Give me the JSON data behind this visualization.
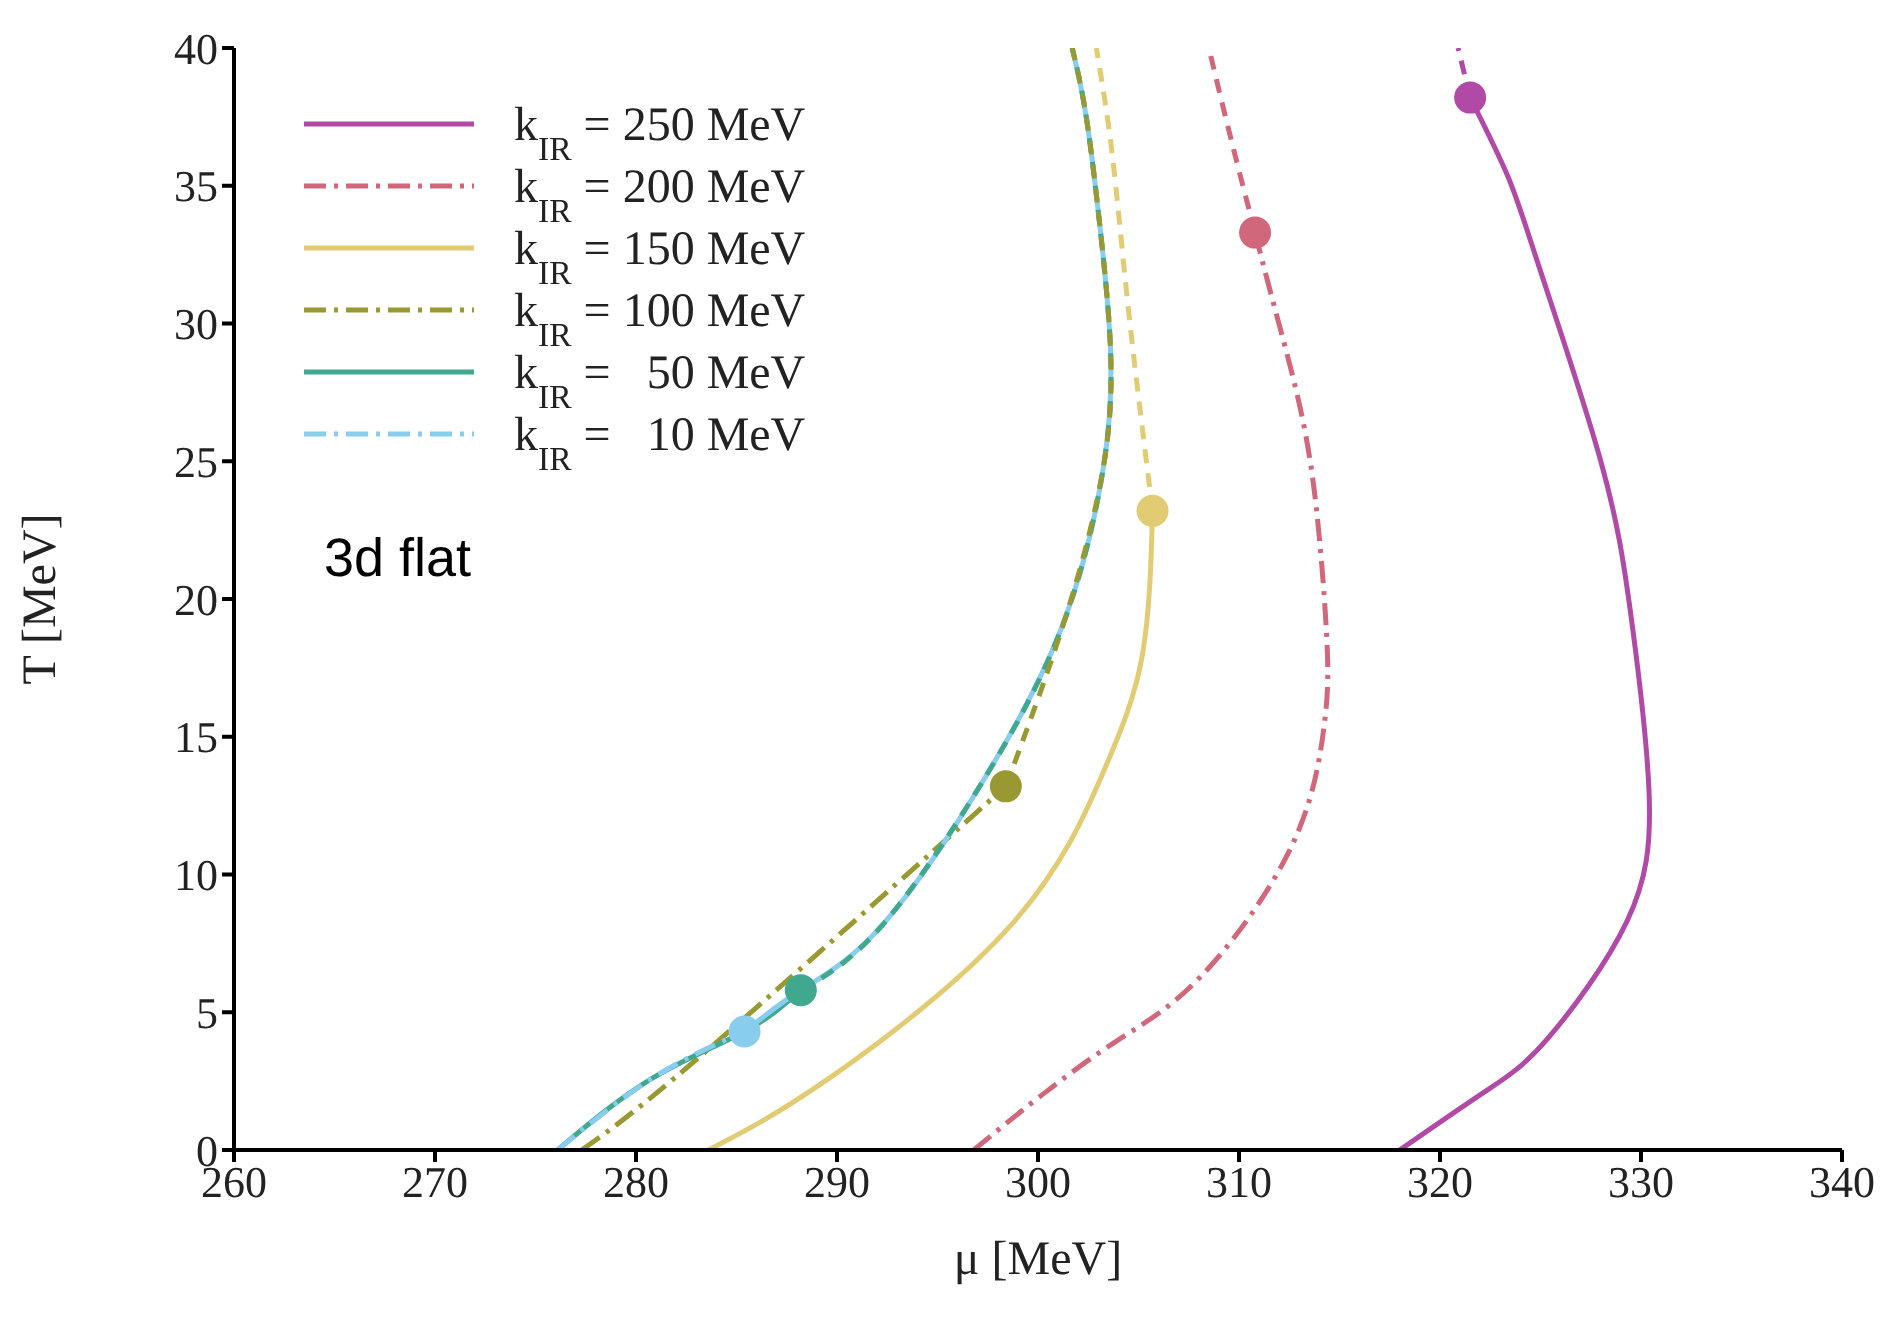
{
  "chart_data": {
    "type": "line",
    "xlabel": "μ [MeV]",
    "ylabel": "T [MeV]",
    "xlim": [
      260,
      340
    ],
    "xticks": [
      260,
      270,
      280,
      290,
      300,
      310,
      320,
      330,
      340
    ],
    "ylim": [
      0,
      40
    ],
    "yticks": [
      0,
      5,
      10,
      15,
      20,
      25,
      30,
      35,
      40
    ],
    "legend": "top left",
    "marker": "none",
    "annotations": [
      "3d flat"
    ],
    "series": [
      {
        "name": "k$_{IR}$ = 250 MeV",
        "color": "#b04aa6",
        "line_style": "solid",
        "x": [
          318.0,
          322.2,
          325.3,
          329.3,
          330.4,
          329.5,
          328.0,
          325.0,
          323.4,
          321.5
        ],
        "values": [
          0,
          2.1,
          4,
          8.3,
          13,
          19.4,
          25,
          31.9,
          35.3,
          38.2
        ]
      },
      {
        "name": "k$_{IR}$ = 200 MeV",
        "color": "#d0677a",
        "line_style": "dashdot",
        "x": [
          296.8,
          300.2,
          304.0,
          308.1,
          312.6,
          314.2,
          314.4,
          314.0,
          313.2,
          311.8,
          310.8
        ],
        "values": [
          0,
          2,
          4,
          6.3,
          11,
          15.2,
          18,
          22.2,
          26.4,
          30.5,
          33.3
        ]
      },
      {
        "name": "k$_{IR}$ = 150 MeV",
        "color": "#e2cc73",
        "line_style": "solid",
        "x": [
          283.6,
          289.6,
          298.7,
          303.3,
          305.2,
          305.7
        ],
        "values": [
          0,
          2.6,
          8.2,
          13.8,
          18,
          23.2
        ]
      },
      {
        "name": "k$_{IR}$ = 100 MeV",
        "color": "#999933",
        "line_style": "dashdot",
        "x": [
          277.3,
          281.9,
          290.7,
          298.4
        ],
        "values": [
          0,
          2.6,
          8.2,
          13.2
        ]
      },
      {
        "name": "k$_{IR}$ =   50 MeV",
        "color": "#3fa88e",
        "line_style": "solid",
        "x": [
          276.1,
          280.8,
          285.4,
          288.2
        ],
        "values": [
          0,
          2.6,
          4.3,
          5.8
        ]
      },
      {
        "name": "k$_{IR}$ =   10 MeV",
        "color": "#88ccee",
        "line_style": "dashdot",
        "x": [
          276.1,
          280.8,
          285.4
        ],
        "values": [
          0,
          2.6,
          4.3
        ]
      },
      {
        "color": "#88ccee",
        "line_style": "solid",
        "x": [
          285.4,
          288.2,
          292.3,
          297.6,
          301.4,
          303.3,
          303.6,
          303.1,
          302.4,
          301.7
        ],
        "values": [
          4.3,
          5.8,
          8.2,
          13.8,
          19.4,
          25,
          29.2,
          33.4,
          37.5,
          40
        ]
      },
      {
        "color": "#3fa88e",
        "line_style": "dashed",
        "x": [
          288.2,
          292.3,
          297.6,
          301.4,
          303.3,
          303.6,
          303.1,
          302.4,
          301.7
        ],
        "values": [
          5.8,
          8.2,
          13.8,
          19.4,
          25,
          29.2,
          33.4,
          37.5,
          40
        ]
      },
      {
        "color": "#999933",
        "line_style": "dashed",
        "x": [
          298.4,
          301.4,
          303.3,
          303.6,
          303.1,
          302.4,
          301.7
        ],
        "values": [
          13.2,
          19.4,
          25,
          29.2,
          33.4,
          37.5,
          40
        ]
      },
      {
        "color": "#e2cc73",
        "line_style": "dashed",
        "x": [
          305.7,
          304.5,
          303.7,
          302.9
        ],
        "values": [
          23.2,
          30.5,
          36.1,
          40
        ]
      },
      {
        "color": "#d0677a",
        "line_style": "dashed",
        "x": [
          310.8,
          309.6,
          308.5
        ],
        "values": [
          33.3,
          36.7,
          40
        ]
      },
      {
        "color": "#b04aa6",
        "line_style": "dashed",
        "x": [
          321.5,
          320.9
        ],
        "values": [
          38.2,
          40
        ]
      },
      {
        "type": "scatter",
        "marker": "circle",
        "x": [
          321.5,
          310.8,
          305.7,
          298.4,
          288.2,
          285.4
        ],
        "values": [
          38.2,
          33.3,
          23.2,
          13.2,
          5.8,
          4.3
        ],
        "colors": [
          "#b04aa6",
          "#d0677a",
          "#e2cc73",
          "#999933",
          "#3fa88e",
          "#88ccee"
        ]
      }
    ]
  }
}
